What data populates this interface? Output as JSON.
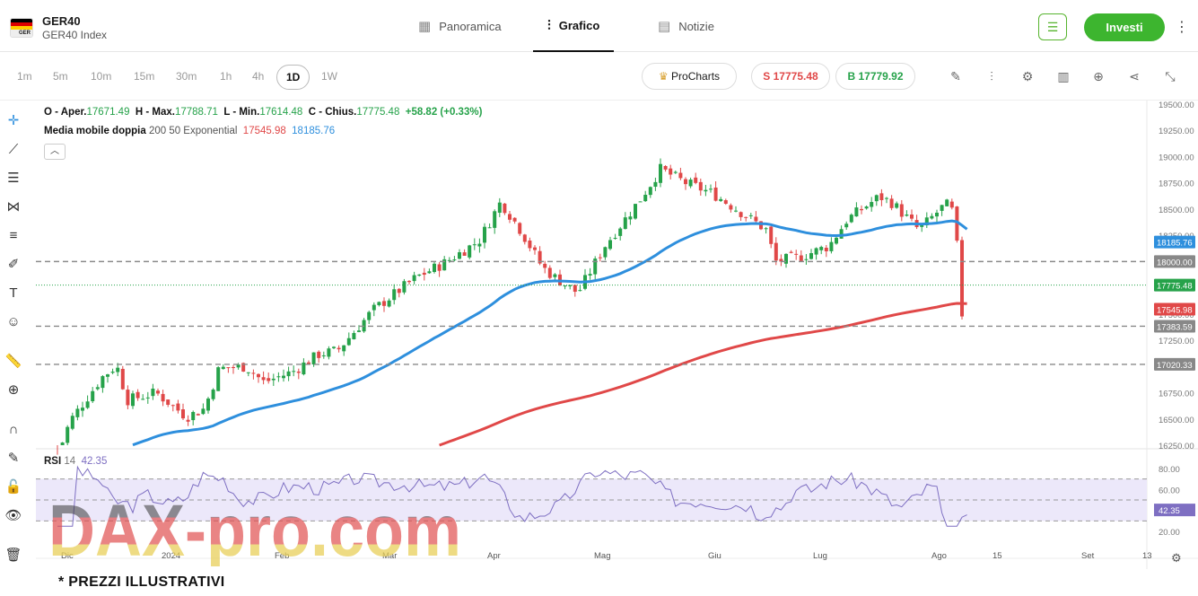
{
  "header": {
    "symbol": "GER40",
    "subtitle": "GER40 Index",
    "flag_text": "GER",
    "tabs": [
      {
        "label": "Panoramica",
        "icon": "grid-icon"
      },
      {
        "label": "Grafico",
        "icon": "candles-icon",
        "active": true
      },
      {
        "label": "Notizie",
        "icon": "news-icon"
      }
    ],
    "invest_label": "Investi"
  },
  "toolbar": {
    "timeframes": [
      "1m",
      "5m",
      "10m",
      "15m",
      "30m",
      "1h",
      "4h",
      "1D",
      "1W"
    ],
    "selected": "1D",
    "procharts": "ProCharts",
    "sell": "S 17775.48",
    "buy": "B 17779.92"
  },
  "legend": {
    "o_label": "O - Aper.",
    "o": "17671.49",
    "h_label": "H - Max.",
    "h": "17788.71",
    "l_label": "L - Min.",
    "l": "17614.48",
    "c_label": "C - Chius.",
    "c": "17775.48",
    "chg": "+58.82 (+0.33%)",
    "ma_name": "Media mobile doppia",
    "ma_params": "200 50 Exponential",
    "ma200": "17545.98",
    "ma50": "18185.76"
  },
  "rsi": {
    "name": "RSI",
    "period": "14",
    "value": "42.35",
    "ticks": [
      "80.00",
      "60.00",
      "40.00",
      "20.00"
    ]
  },
  "chart_data": {
    "type": "candlestick",
    "y_ticks": [
      19500,
      19250,
      19000,
      18750,
      18500,
      18250,
      18000,
      17750,
      17500,
      17250,
      17000,
      16750,
      16500,
      16250
    ],
    "ylim": [
      16250,
      19500
    ],
    "x_labels": [
      "Dic",
      "2024",
      "Feb",
      "Mar",
      "Apr",
      "Mag",
      "Giu",
      "Lug",
      "Ago",
      "15",
      "Set",
      "13"
    ],
    "price_labels": [
      {
        "text": "18185.76",
        "value": 18185.76,
        "color": "#2e8fdd"
      },
      {
        "text": "18000.00",
        "value": 18000,
        "color": "#888888"
      },
      {
        "text": "17775.48",
        "value": 17775.48,
        "color": "#26a24a"
      },
      {
        "text": "17545.98",
        "value": 17545.98,
        "color": "#e04848"
      },
      {
        "text": "17383.59",
        "value": 17383.59,
        "color": "#888888"
      },
      {
        "text": "17020.33",
        "value": 17020.33,
        "color": "#888888"
      }
    ],
    "horizontal_lines": [
      18000,
      17383.59,
      17020.33
    ],
    "last_price": 17775.48,
    "colors": {
      "up": "#26a24a",
      "down": "#e04848",
      "ma50": "#2e8fdd",
      "ma200": "#e04848",
      "rsi": "#7e6fc2"
    }
  },
  "footer": "* PREZZI ILLUSTRATIVI",
  "watermark": "DAX-pro.com"
}
